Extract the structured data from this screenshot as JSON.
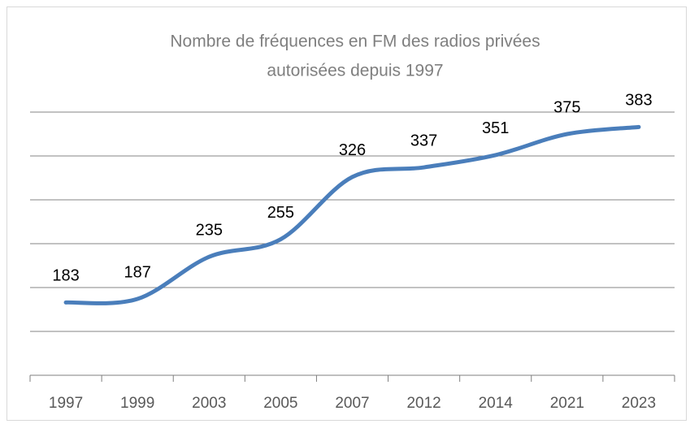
{
  "chart_data": {
    "type": "line",
    "title": [
      "Nombre de fréquences  en FM des radios privées",
      "autorisées depuis 1997"
    ],
    "categories": [
      "1997",
      "1999",
      "2003",
      "2005",
      "2007",
      "2012",
      "2014",
      "2021",
      "2023"
    ],
    "values": [
      183,
      187,
      235,
      255,
      326,
      337,
      351,
      375,
      383
    ],
    "color": "#4a7ebb",
    "ylim": [
      100,
      400
    ],
    "yticks": [
      100,
      150,
      200,
      250,
      300,
      350,
      400
    ],
    "grid": true
  }
}
